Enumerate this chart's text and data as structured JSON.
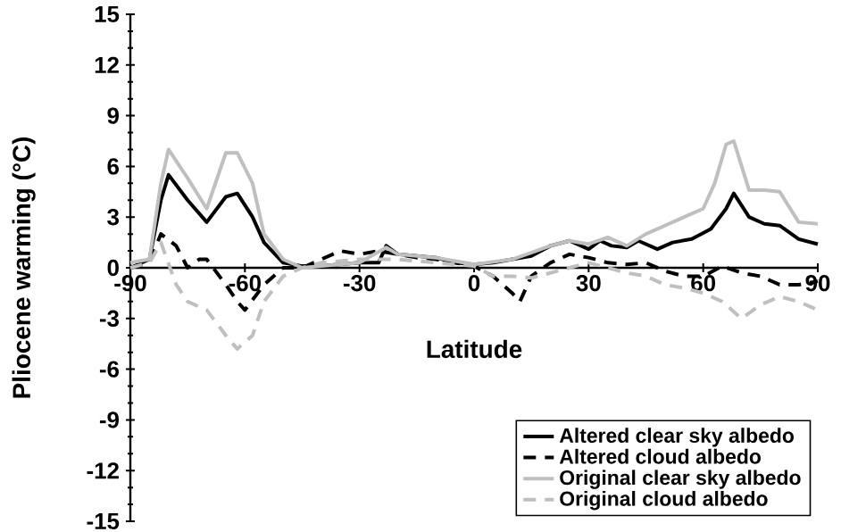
{
  "chart_data": {
    "type": "line",
    "xlabel": "Latitude",
    "ylabel": "Pliocene warming  (°C)",
    "xlim": [
      -90,
      90
    ],
    "ylim": [
      -15,
      15
    ],
    "xticks": [
      -90,
      -60,
      -30,
      0,
      30,
      60,
      90
    ],
    "yticks": [
      -15,
      -12,
      -9,
      -6,
      -3,
      0,
      3,
      6,
      9,
      12,
      15
    ],
    "legend": "bottom right",
    "series": [
      {
        "name": "Altered clear sky albedo",
        "color": "#000000",
        "line_style": "solid",
        "x": [
          -90,
          -85,
          -82,
          -80,
          -75,
          -70,
          -65,
          -62,
          -58,
          -55,
          -50,
          -45,
          -40,
          -35,
          -30,
          -25,
          -23,
          -20,
          -15,
          -10,
          -5,
          0,
          5,
          10,
          15,
          20,
          25,
          30,
          33,
          36,
          40,
          43,
          48,
          52,
          57,
          62,
          66,
          68,
          72,
          76,
          80,
          85,
          90
        ],
        "values": [
          0,
          0.5,
          4,
          5.5,
          4,
          2.7,
          4.2,
          4.4,
          3,
          1.5,
          0.3,
          0.1,
          0.1,
          0.2,
          0.3,
          0.3,
          1.3,
          0.8,
          0.7,
          0.6,
          0.3,
          0.2,
          0.3,
          0.5,
          0.7,
          1.3,
          1.6,
          1.1,
          1.6,
          1.3,
          1.2,
          1.6,
          1.1,
          1.5,
          1.7,
          2.3,
          3.5,
          4.4,
          3,
          2.6,
          2.5,
          1.7,
          1.4
        ]
      },
      {
        "name": "Altered cloud albedo",
        "color": "#000000",
        "line_style": "dashed",
        "x": [
          -90,
          -85,
          -82,
          -78,
          -75,
          -72,
          -70,
          -65,
          -62,
          -60,
          -55,
          -50,
          -45,
          -40,
          -35,
          -30,
          -25,
          -20,
          -15,
          -10,
          -5,
          0,
          5,
          10,
          12,
          15,
          20,
          25,
          30,
          35,
          40,
          45,
          50,
          55,
          60,
          65,
          70,
          75,
          80,
          85,
          90
        ],
        "values": [
          0,
          0.3,
          2,
          1.3,
          0,
          0.5,
          0.5,
          -1,
          -2,
          -2.5,
          -1,
          0,
          0,
          0.5,
          1,
          0.8,
          1,
          0.8,
          0.6,
          0.5,
          0.3,
          0.1,
          -0.5,
          -1.5,
          -2,
          -0.5,
          0.3,
          0.8,
          0.6,
          0.3,
          0.2,
          0.3,
          -0.2,
          -0.5,
          -0.5,
          0.1,
          -0.3,
          -0.5,
          -1,
          -1,
          -0.8
        ]
      },
      {
        "name": "Original clear sky albedo",
        "color": "#bfbfbf",
        "line_style": "solid",
        "x": [
          -90,
          -85,
          -82,
          -80,
          -75,
          -70,
          -65,
          -62,
          -58,
          -55,
          -50,
          -45,
          -40,
          -30,
          -23,
          -20,
          -10,
          0,
          10,
          20,
          25,
          30,
          35,
          40,
          45,
          50,
          55,
          60,
          63,
          66,
          68,
          72,
          76,
          80,
          85,
          90
        ],
        "values": [
          0.3,
          0.5,
          5,
          7,
          5.3,
          3.5,
          6.8,
          6.8,
          5,
          2,
          0.5,
          0,
          0.1,
          0.3,
          1.2,
          0.8,
          0.6,
          0.2,
          0.5,
          1.3,
          1.6,
          1.4,
          1.8,
          1.3,
          2,
          2.5,
          3,
          3.5,
          5,
          7.3,
          7.5,
          4.6,
          4.6,
          4.5,
          2.7,
          2.6
        ]
      },
      {
        "name": "Original cloud albedo",
        "color": "#bfbfbf",
        "line_style": "dashed",
        "x": [
          -90,
          -85,
          -82,
          -78,
          -75,
          -70,
          -65,
          -62,
          -58,
          -55,
          -50,
          -45,
          -40,
          -30,
          -20,
          -10,
          0,
          5,
          10,
          15,
          20,
          25,
          30,
          35,
          40,
          45,
          50,
          55,
          60,
          65,
          70,
          75,
          80,
          85,
          90
        ],
        "values": [
          0,
          0.3,
          1.5,
          -1,
          -2,
          -2.5,
          -4,
          -4.8,
          -4,
          -2,
          -0.5,
          0,
          0.3,
          0.5,
          0.5,
          0.3,
          0.1,
          -0.5,
          -0.5,
          -0.6,
          -0.3,
          0,
          0.3,
          0,
          -0.3,
          -0.5,
          -1,
          -1.2,
          -1.5,
          -2,
          -3,
          -2.2,
          -1.7,
          -2,
          -2.5
        ]
      }
    ]
  }
}
